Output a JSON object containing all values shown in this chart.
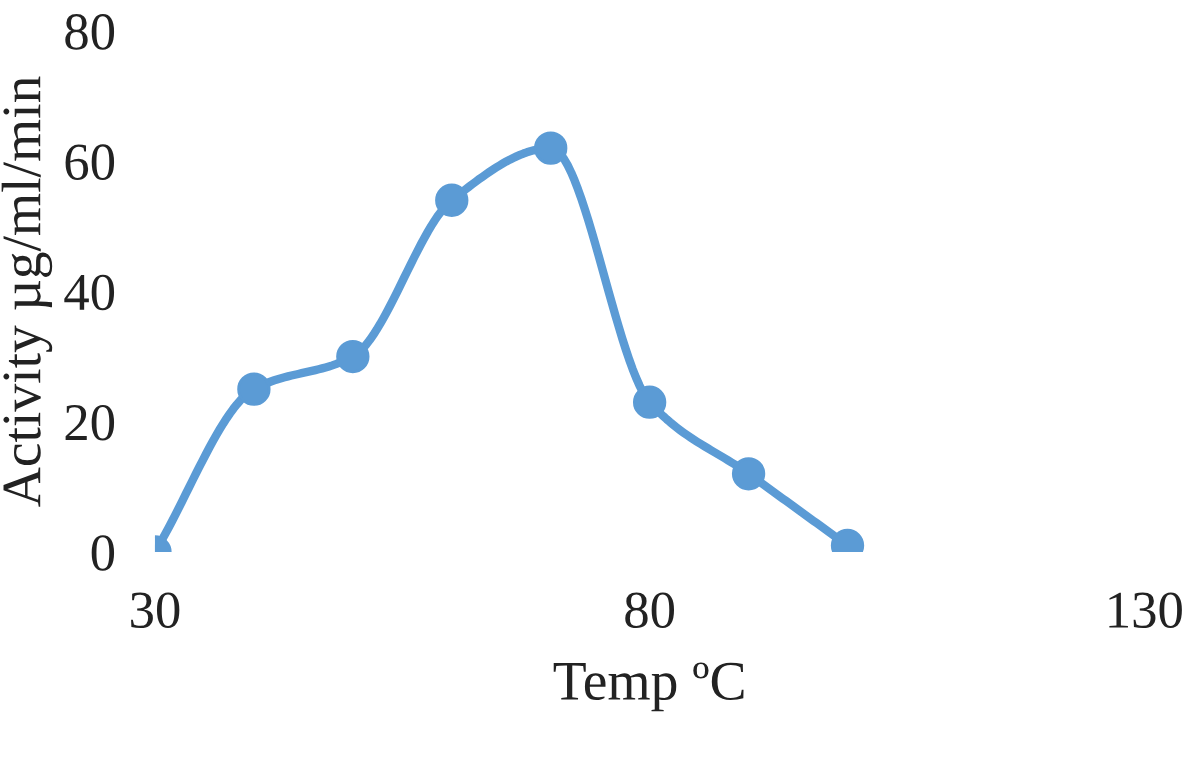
{
  "chart_data": {
    "type": "line",
    "xlabel": "Temp ºC",
    "ylabel": "Activity µg/ml/min",
    "x": [
      30,
      40,
      50,
      60,
      70,
      80,
      90,
      100
    ],
    "series": [
      {
        "color": "#5b9bd5",
        "values": [
          0,
          25,
          30,
          54,
          62,
          23,
          12,
          1
        ]
      }
    ],
    "xlim": [
      30,
      130
    ],
    "xticks": [
      30,
      80,
      130
    ],
    "ylim": [
      0,
      80
    ],
    "yticks": [
      0,
      20,
      40,
      60,
      80
    ],
    "grid": false,
    "legend": false,
    "marker": "circle",
    "line_style": "solid"
  }
}
